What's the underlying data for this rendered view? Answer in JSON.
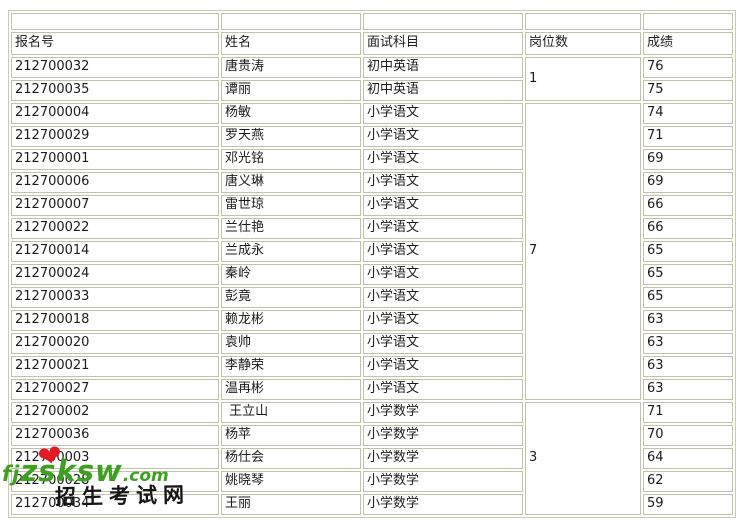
{
  "table": {
    "headers": [
      "报名号",
      "姓名",
      "面试科目",
      "岗位数",
      "成绩"
    ],
    "rows": [
      {
        "reg_no": "212700032",
        "name": "唐贵涛",
        "subject": "初中英语",
        "score": "76"
      },
      {
        "reg_no": "212700035",
        "name": "谭丽",
        "subject": "初中英语",
        "score": "75"
      },
      {
        "reg_no": "212700004",
        "name": "杨敏",
        "subject": "小学语文",
        "score": "74"
      },
      {
        "reg_no": "212700029",
        "name": "罗天燕",
        "subject": "小学语文",
        "score": "71"
      },
      {
        "reg_no": "212700001",
        "name": "邓光铭",
        "subject": "小学语文",
        "score": "69"
      },
      {
        "reg_no": "212700006",
        "name": "唐义琳",
        "subject": "小学语文",
        "score": "69"
      },
      {
        "reg_no": "212700007",
        "name": "雷世琼",
        "subject": "小学语文",
        "score": "66"
      },
      {
        "reg_no": "212700022",
        "name": "兰仕艳",
        "subject": "小学语文",
        "score": "66"
      },
      {
        "reg_no": "212700014",
        "name": "兰成永",
        "subject": "小学语文",
        "score": "65"
      },
      {
        "reg_no": "212700024",
        "name": "秦岭",
        "subject": "小学语文",
        "score": "65"
      },
      {
        "reg_no": "212700033",
        "name": "彭竟",
        "subject": "小学语文",
        "score": "65"
      },
      {
        "reg_no": "212700018",
        "name": "赖龙彬",
        "subject": "小学语文",
        "score": "63"
      },
      {
        "reg_no": "212700020",
        "name": "袁帅",
        "subject": "小学语文",
        "score": "63"
      },
      {
        "reg_no": "212700021",
        "name": "李静荣",
        "subject": "小学语文",
        "score": "63"
      },
      {
        "reg_no": "212700027",
        "name": "温再彬",
        "subject": "小学语文",
        "score": "63"
      },
      {
        "reg_no": "212700002",
        "name": " 王立山",
        "subject": "小学数学",
        "score": "71"
      },
      {
        "reg_no": "212700036",
        "name": "杨苹",
        "subject": "小学数学",
        "score": "70"
      },
      {
        "reg_no": "212700003",
        "name": "杨仕会",
        "subject": "小学数学",
        "score": "64"
      },
      {
        "reg_no": "212700028",
        "name": "姚晓琴",
        "subject": "小学数学",
        "score": "62"
      },
      {
        "reg_no": "212700034",
        "name": "王丽",
        "subject": "小学数学",
        "score": "59"
      }
    ],
    "position_groups": [
      {
        "row_start": 0,
        "row_span": 2,
        "label": "1"
      },
      {
        "row_start": 2,
        "row_span": 13,
        "label": "7"
      },
      {
        "row_start": 15,
        "row_span": 5,
        "label": "3"
      }
    ]
  },
  "watermark": {
    "site_prefix": "fj",
    "site_main": "zsksw",
    "site_suffix": ".com",
    "heart_glyph": "❤",
    "cn_text": "招生考试网",
    "green_color": "#3ca11e",
    "red_color": "#e51a24"
  },
  "colors": {
    "border": "#c2c2aa",
    "text": "#1c1c1c",
    "background": "#ffffff"
  }
}
